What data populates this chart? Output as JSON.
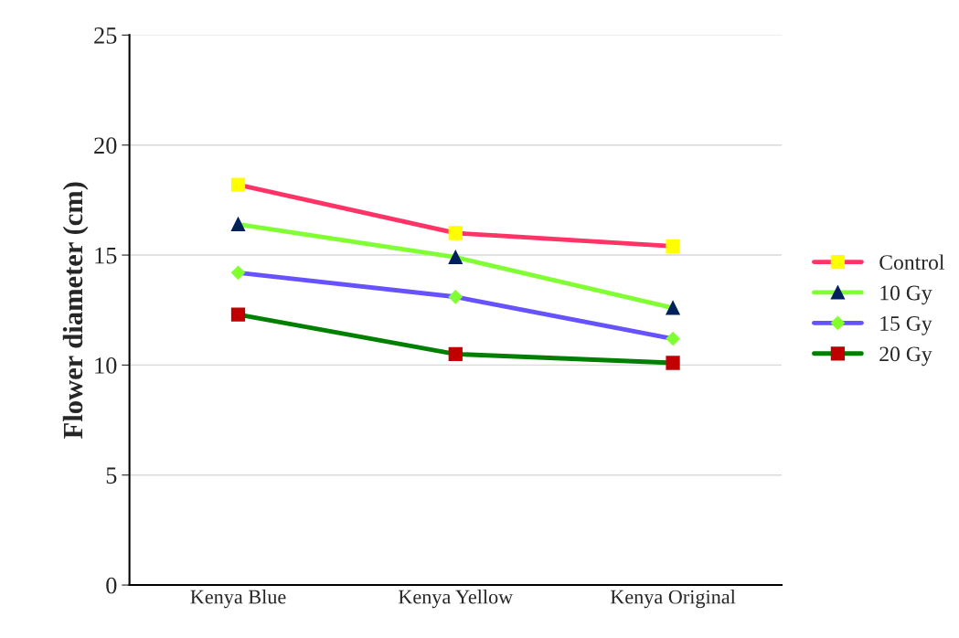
{
  "chart_data": {
    "type": "line",
    "ylabel": "Flower diameter (cm)",
    "categories": [
      "Kenya Blue",
      "Kenya Yellow",
      "Kenya Original"
    ],
    "ylim": [
      0,
      25
    ],
    "yticks": [
      0,
      5,
      10,
      15,
      20,
      25
    ],
    "grid": "y",
    "legend": "right",
    "series": [
      {
        "name": "Control",
        "color": "#ff3366",
        "marker": "square",
        "colors": [
          "#ffff00",
          "#ffff00",
          "#ffff00"
        ],
        "values": [
          18.2,
          16.0,
          15.4
        ]
      },
      {
        "name": "10 Gy",
        "color": "#80ff33",
        "marker": "triangle",
        "colors": [
          "#002060",
          "#002060",
          "#002060"
        ],
        "values": [
          16.4,
          14.9,
          12.6
        ]
      },
      {
        "name": "15 Gy",
        "color": "#6652ff",
        "marker": "diamond",
        "colors": [
          "#80ff33",
          "#80ff33",
          "#80ff33"
        ],
        "values": [
          14.2,
          13.1,
          11.2
        ]
      },
      {
        "name": "20 Gy",
        "color": "#008000",
        "marker": "square",
        "colors": [
          "#c00000",
          "#c00000",
          "#c00000"
        ],
        "values": [
          12.3,
          10.5,
          10.1
        ]
      }
    ]
  }
}
